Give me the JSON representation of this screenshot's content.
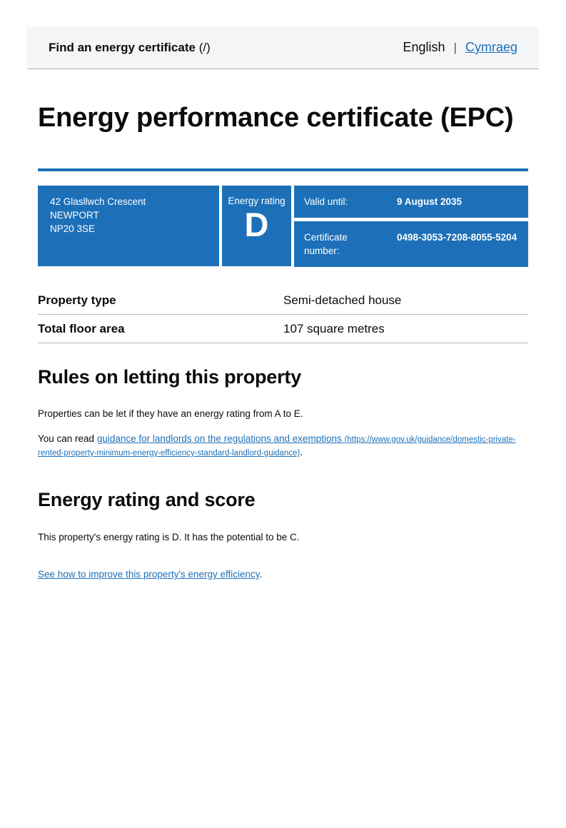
{
  "header": {
    "service_name": "Find an energy certificate",
    "service_suffix": "(/)",
    "language_current": "English",
    "language_separator": "|",
    "language_link": "Cymraeg"
  },
  "page": {
    "title": "Energy performance certificate (EPC)"
  },
  "certificate_box": {
    "address_lines": [
      "42 Glasllwch Crescent",
      "NEWPORT",
      "NP20 3SE"
    ],
    "rating_label": "Energy rating",
    "rating_value": "D",
    "valid_until_label": "Valid until:",
    "valid_until_value": "9 August 2035",
    "certificate_number_label": "Certificate\nnumber:",
    "certificate_number_value": "0498-3053-7208-8055-5204"
  },
  "summary": {
    "rows": [
      {
        "key": "Property type",
        "value": "Semi-detached house"
      },
      {
        "key": "Total floor area",
        "value": "107 square metres"
      }
    ]
  },
  "rules_section": {
    "heading": "Rules on letting this property",
    "paragraph": "Properties can be let if they have an energy rating from A to E.",
    "read_prefix": "You can read ",
    "link_text": "guidance for landlords on the regulations and exemptions ",
    "link_url_text": "(https://www.gov.uk/guidance/domestic-private-rented-property-minimum-energy-efficiency-standard-landlord-guidance)",
    "suffix": "."
  },
  "energy_section": {
    "heading": "Energy rating and score",
    "paragraph": "This property's energy rating is D. It has the potential to be C.",
    "link_text": "See how to improve this property's energy efficiency",
    "suffix": "."
  },
  "colors": {
    "brand_blue": "#1d70b8",
    "header_background": "#f3f5f7",
    "border_gray": "#b7babd",
    "text_black": "#0b0c0c",
    "white": "#ffffff"
  }
}
